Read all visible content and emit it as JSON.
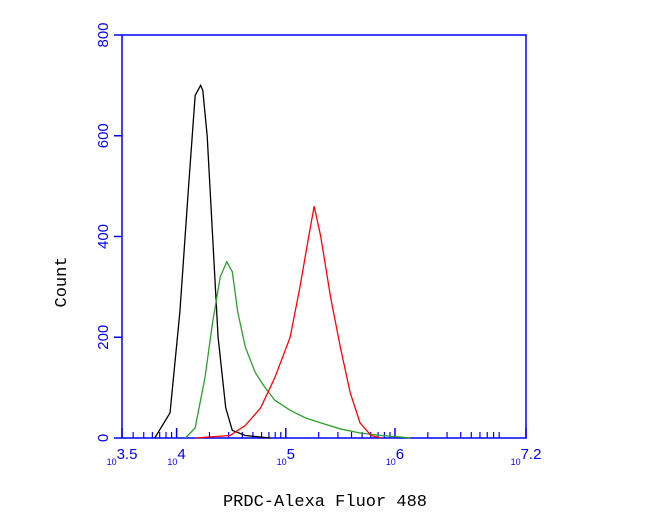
{
  "chart_data": {
    "type": "line",
    "x_label": "PRDC-Alexa Fluor 488",
    "y_label": "Count",
    "x_log_base": 10,
    "xlim": [
      3.5,
      7.2
    ],
    "xticks": [
      3.5,
      4,
      5,
      6,
      7.2
    ],
    "ylim": [
      0,
      800
    ],
    "yticks": [
      0,
      200,
      400,
      600,
      800
    ],
    "axis_color": "#0000ff",
    "minor_ticks": true,
    "series": [
      {
        "color": "#000000",
        "x": [
          3.8,
          3.94,
          4.03,
          4.11,
          4.17,
          4.22,
          4.24,
          4.28,
          4.33,
          4.38,
          4.45,
          4.51,
          4.63,
          4.86
        ],
        "values": [
          0,
          50,
          250,
          500,
          680,
          700,
          690,
          600,
          400,
          200,
          60,
          15,
          5,
          0
        ]
      },
      {
        "color": "#2ca02c",
        "x": [
          4.08,
          4.17,
          4.26,
          4.33,
          4.4,
          4.46,
          4.51,
          4.56,
          4.63,
          4.72,
          4.81,
          4.9,
          5.04,
          5.18,
          5.32,
          5.5,
          5.68,
          5.87,
          6.05,
          6.14
        ],
        "values": [
          0,
          20,
          120,
          230,
          320,
          350,
          330,
          250,
          180,
          130,
          100,
          75,
          55,
          40,
          30,
          18,
          10,
          5,
          2,
          0
        ]
      },
      {
        "color": "#ff0000",
        "x": [
          4.17,
          4.49,
          4.63,
          4.77,
          4.9,
          5.04,
          5.13,
          5.21,
          5.26,
          5.32,
          5.41,
          5.5,
          5.59,
          5.68,
          5.78,
          5.87
        ],
        "values": [
          0,
          5,
          25,
          60,
          120,
          200,
          300,
          400,
          460,
          400,
          280,
          180,
          90,
          30,
          5,
          0
        ]
      }
    ]
  }
}
